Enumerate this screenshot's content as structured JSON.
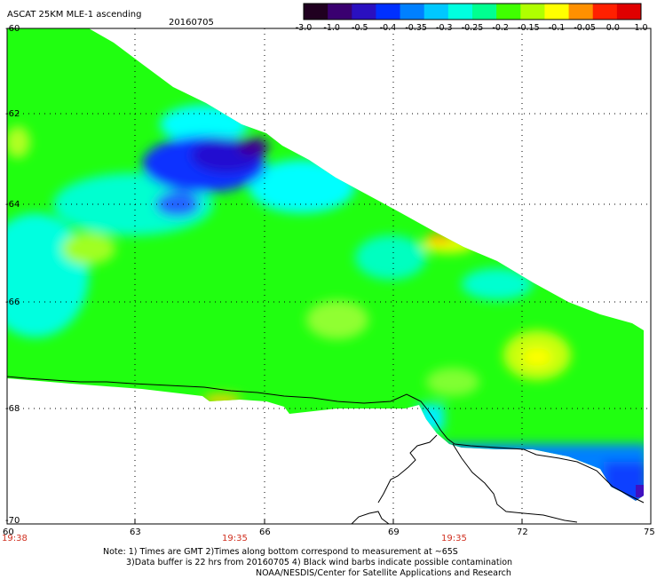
{
  "header": {
    "title": "ASCAT 25KM MLE-1 ascending",
    "date": "20160705"
  },
  "colorbar": {
    "labels": [
      "-3.0",
      "-1.0",
      "-0.5",
      "-0.4",
      "-0.35",
      "-0.3",
      "-0.25",
      "-0.2",
      "-0.15",
      "-0.1",
      "-0.05",
      "0.0",
      "1.0"
    ],
    "colors": [
      "#200020",
      "#3a0070",
      "#2a10c0",
      "#0030ff",
      "#0080ff",
      "#00c8ff",
      "#00ffe0",
      "#00ff90",
      "#40ff00",
      "#b0ff00",
      "#ffff00",
      "#ff9000",
      "#ff2000",
      "#e00000"
    ]
  },
  "map": {
    "lat_labels": [
      "-60",
      "-62",
      "-64",
      "-66",
      "-68",
      "-70"
    ],
    "lon_labels": [
      "60",
      "63",
      "66",
      "69",
      "72",
      "75"
    ],
    "time_labels": [
      "19:38",
      "19:35",
      "19:35"
    ],
    "field_colors": {
      "green": "#20ff10",
      "light_green": "#60ff30",
      "yellow_green": "#c8ff20",
      "yellow": "#ffff00",
      "orange": "#ffa000",
      "cyan": "#00ffff",
      "cyan_green": "#00ffb0",
      "blue": "#0040ff",
      "dark_blue": "#1818e0",
      "purple": "#400090"
    }
  },
  "notes": {
    "line1": "Note: 1) Times are GMT 2)Times along bottom correspond to measurement at ~65S",
    "line2": "3)Data buffer is 22 hrs from 20160705 4) Black wind barbs indicate possible contamination",
    "line3": "NOAA/NESDIS/Center for Satellite Applications and Research"
  }
}
